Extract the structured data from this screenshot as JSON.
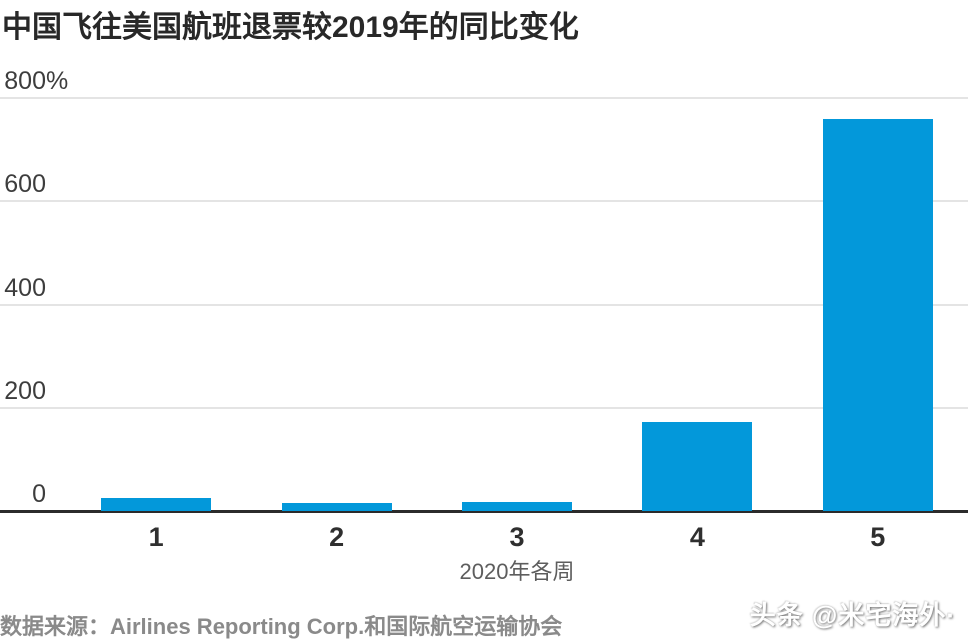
{
  "header": {
    "title": "中国飞往美国航班退票较2019年的同比变化"
  },
  "chart_data": {
    "type": "bar",
    "title": "中国飞往美国航班退票较2019年的同比变化",
    "categories": [
      "1",
      "2",
      "3",
      "4",
      "5"
    ],
    "values": [
      25,
      15,
      18,
      173,
      760
    ],
    "unit": "%",
    "xlabel": "2020年各周",
    "ylabel": "",
    "ylim": [
      0,
      800
    ],
    "yticks": [
      800,
      600,
      400,
      200,
      0
    ],
    "ytick_labels": [
      "800%",
      "600",
      "400",
      "200",
      "0"
    ],
    "grid": "horizontal",
    "legend": "none",
    "bar_color": "#0398da"
  },
  "footer": {
    "source": "数据来源：Airlines Reporting Corp.和国际航空运输协会",
    "watermark": "头条 @米宅海外·"
  }
}
